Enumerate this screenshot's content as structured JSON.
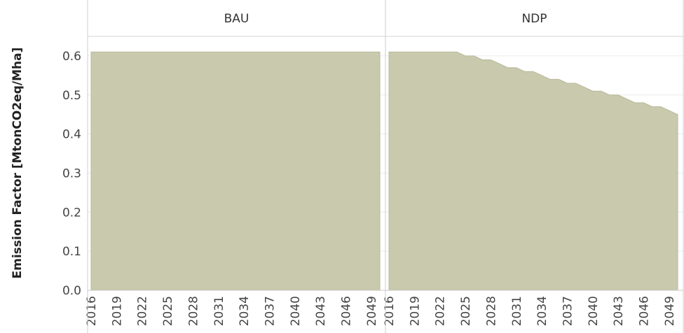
{
  "chart_data": {
    "type": "area",
    "ylabel": "Emission Factor [MtonCO2eq/Mha]",
    "ylim": [
      0,
      0.65
    ],
    "yticks": [
      "0.0",
      "0.1",
      "0.2",
      "0.3",
      "0.4",
      "0.5",
      "0.6"
    ],
    "xtick_labels": [
      "2016",
      "2019",
      "2022",
      "2025",
      "2028",
      "2031",
      "2034",
      "2037",
      "2040",
      "2043",
      "2046",
      "2049"
    ],
    "area_color": "#c8c9ad",
    "grid": true,
    "panels": [
      {
        "header": "BAU",
        "x": [
          2016,
          2017,
          2018,
          2019,
          2020,
          2021,
          2022,
          2023,
          2024,
          2025,
          2026,
          2027,
          2028,
          2029,
          2030,
          2031,
          2032,
          2033,
          2034,
          2035,
          2036,
          2037,
          2038,
          2039,
          2040,
          2041,
          2042,
          2043,
          2044,
          2045,
          2046,
          2047,
          2048,
          2049,
          2050
        ],
        "y": [
          0.61,
          0.61,
          0.61,
          0.61,
          0.61,
          0.61,
          0.61,
          0.61,
          0.61,
          0.61,
          0.61,
          0.61,
          0.61,
          0.61,
          0.61,
          0.61,
          0.61,
          0.61,
          0.61,
          0.61,
          0.61,
          0.61,
          0.61,
          0.61,
          0.61,
          0.61,
          0.61,
          0.61,
          0.61,
          0.61,
          0.61,
          0.61,
          0.61,
          0.61,
          0.61
        ]
      },
      {
        "header": "NDP",
        "x": [
          2016,
          2017,
          2018,
          2019,
          2020,
          2021,
          2022,
          2023,
          2024,
          2025,
          2026,
          2027,
          2028,
          2029,
          2030,
          2031,
          2032,
          2033,
          2034,
          2035,
          2036,
          2037,
          2038,
          2039,
          2040,
          2041,
          2042,
          2043,
          2044,
          2045,
          2046,
          2047,
          2048,
          2049,
          2050
        ],
        "y": [
          0.61,
          0.61,
          0.61,
          0.61,
          0.61,
          0.61,
          0.61,
          0.61,
          0.61,
          0.6,
          0.6,
          0.59,
          0.59,
          0.58,
          0.57,
          0.57,
          0.56,
          0.56,
          0.55,
          0.54,
          0.54,
          0.53,
          0.53,
          0.52,
          0.51,
          0.51,
          0.5,
          0.5,
          0.49,
          0.48,
          0.48,
          0.47,
          0.47,
          0.46,
          0.45
        ]
      }
    ]
  }
}
